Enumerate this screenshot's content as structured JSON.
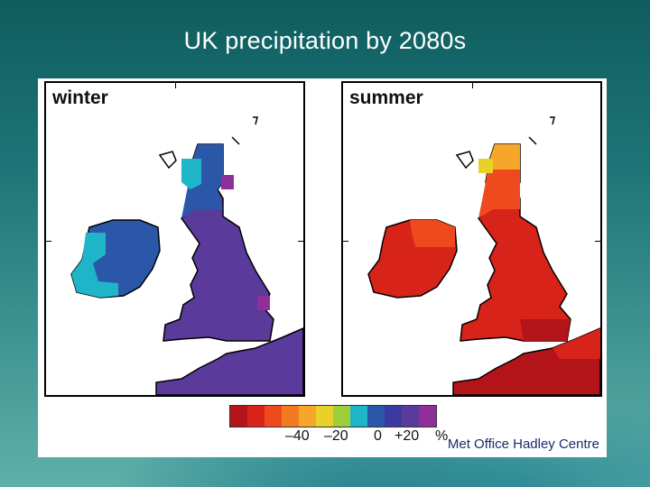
{
  "slide": {
    "title": "UK precipitation by 2080s"
  },
  "panels": [
    {
      "label": "winter"
    },
    {
      "label": "summer"
    }
  ],
  "legend": {
    "unit": "%",
    "tick_labels": [
      "–40",
      "–20",
      "0",
      "+20",
      "%"
    ],
    "colors": [
      "#b21419",
      "#d8231a",
      "#ee4a1e",
      "#f47a22",
      "#f6a629",
      "#e8d22a",
      "#9fce3b",
      "#1fb5c9",
      "#2b57a8",
      "#3b3aa0",
      "#5a3a9a",
      "#8e2f9a"
    ]
  },
  "map_colors": {
    "winter_main": "#5a3a9a",
    "winter_north": "#2b57a8",
    "winter_light": "#1fb5c9",
    "winter_accent": "#8e2f9a",
    "summer_main": "#d8231a",
    "summer_dark": "#b21419",
    "summer_mid": "#ee4a1e",
    "summer_light": "#f6a629",
    "summer_yellow": "#e8d22a"
  },
  "credit": "Met Office Hadley Centre"
}
